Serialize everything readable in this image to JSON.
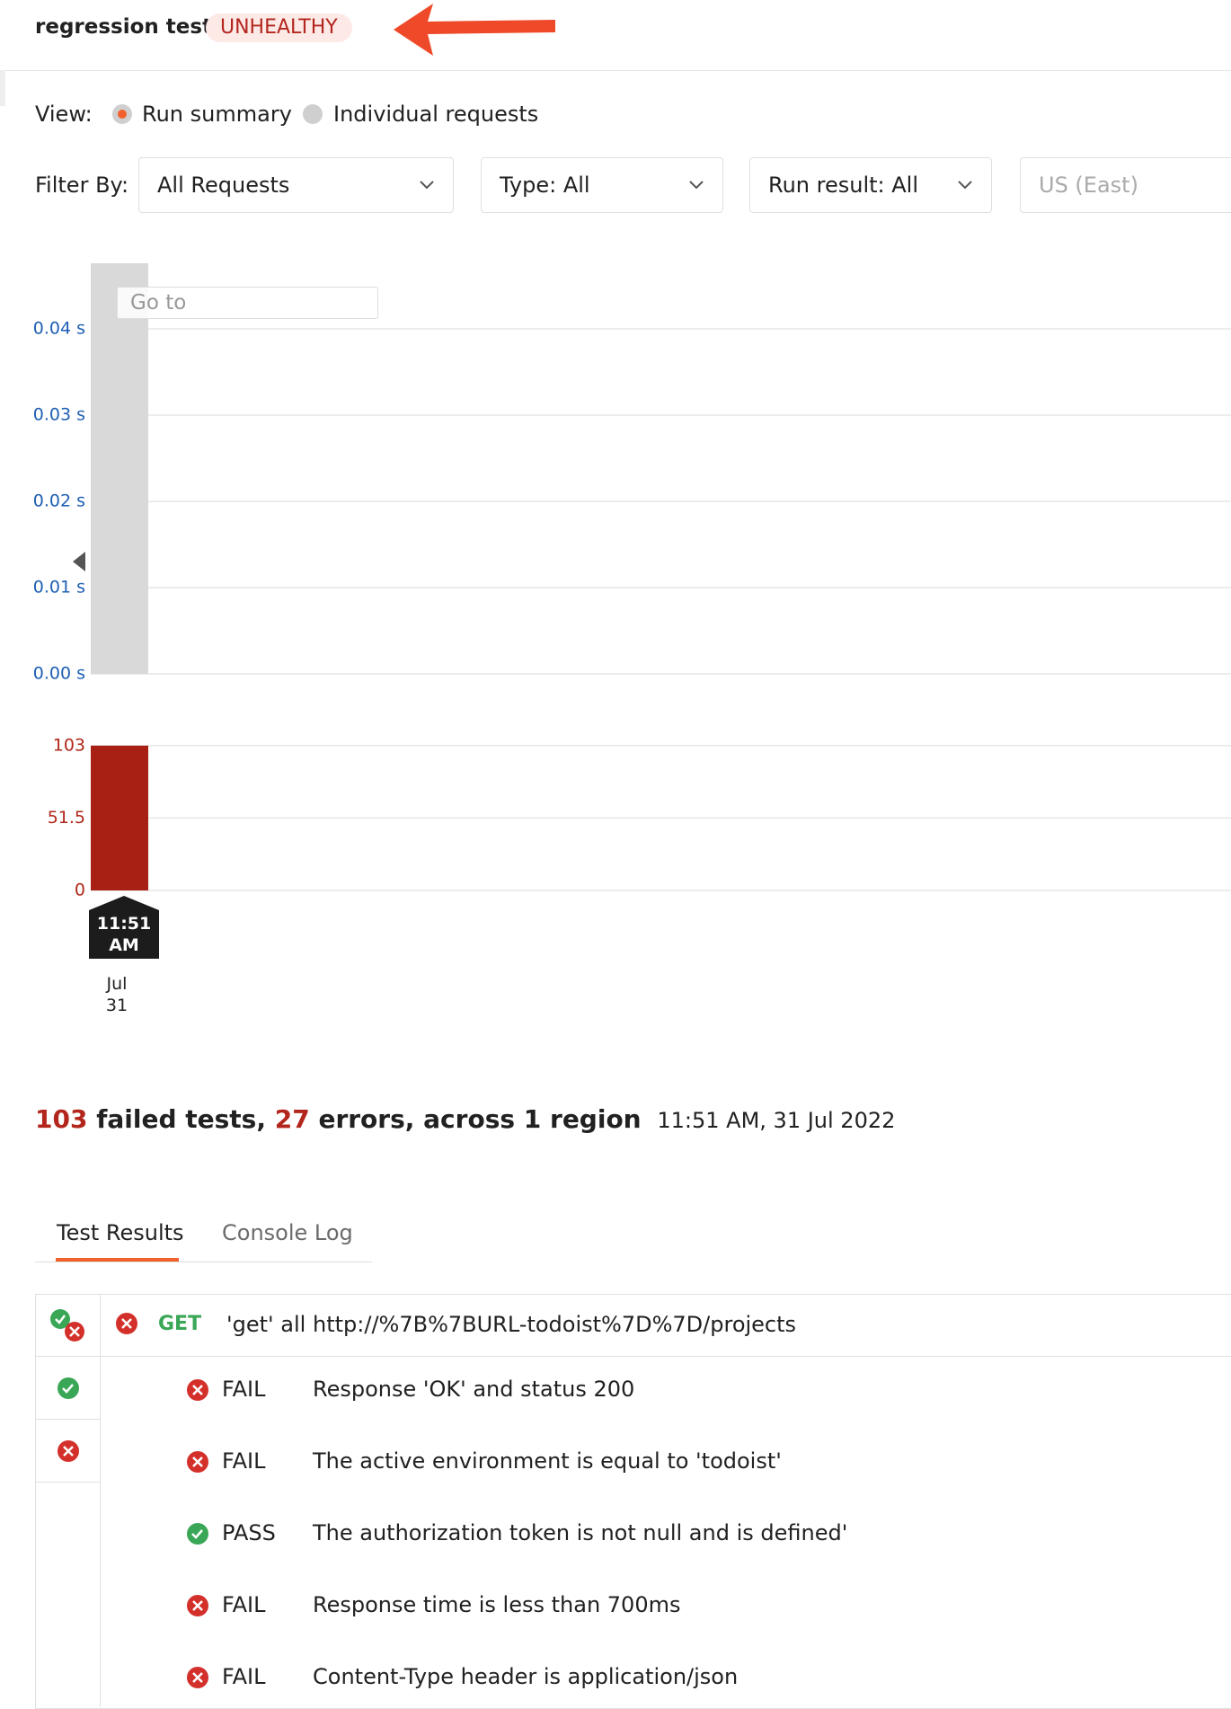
{
  "header": {
    "title": "regression test",
    "status": "UNHEALTHY"
  },
  "view": {
    "label": "View:",
    "options": [
      "Run summary",
      "Individual requests"
    ]
  },
  "filters": {
    "label": "Filter By:",
    "requests": "All Requests",
    "type": "Type: All",
    "run_result": "Run result: All",
    "region": "US (East)"
  },
  "goto": "Go to",
  "chart_data": [
    {
      "type": "bar",
      "categories": [
        "11:51 AM"
      ],
      "values": [
        0.0476
      ],
      "color": "#d9d9d9",
      "tick_color": "#1f5fb4",
      "ylim": [
        0,
        0.0476
      ],
      "yticks": [
        {
          "value": 0,
          "label": "0.00 s"
        },
        {
          "value": 0.01,
          "label": "0.01 s"
        },
        {
          "value": 0.02,
          "label": "0.02 s"
        },
        {
          "value": 0.03,
          "label": "0.03 s"
        },
        {
          "value": 0.04,
          "label": "0.04 s"
        }
      ],
      "grid": true
    },
    {
      "type": "bar",
      "categories": [
        "11:51 AM"
      ],
      "values": [
        103
      ],
      "color": "#a82014",
      "tick_color": "#b0271a",
      "ylim": [
        0,
        124
      ],
      "yticks": [
        0,
        51.5,
        103
      ],
      "grid": true,
      "date_label": "Jul 31"
    }
  ],
  "summary": {
    "failed_count": "103",
    "failed_text": "failed tests,",
    "errors_count": "27",
    "errors_text": "errors, across 1 region",
    "timestamp": "11:51 AM, 31 Jul 2022"
  },
  "tabs": [
    "Test Results",
    "Console Log"
  ],
  "request": {
    "method": "GET",
    "name": "'get' all",
    "url": "http://%7B%7BURL-todoist%7D%7D/projects"
  },
  "results": [
    {
      "status": "FAIL",
      "name": "Response 'OK' and status 200"
    },
    {
      "status": "FAIL",
      "name": "The active environment is equal to 'todoist'"
    },
    {
      "status": "PASS",
      "name": "The authorization token is not null and is defined'"
    },
    {
      "status": "FAIL",
      "name": "Response time is less than 700ms"
    },
    {
      "status": "FAIL",
      "name": "Content-Type header is application/json"
    }
  ]
}
